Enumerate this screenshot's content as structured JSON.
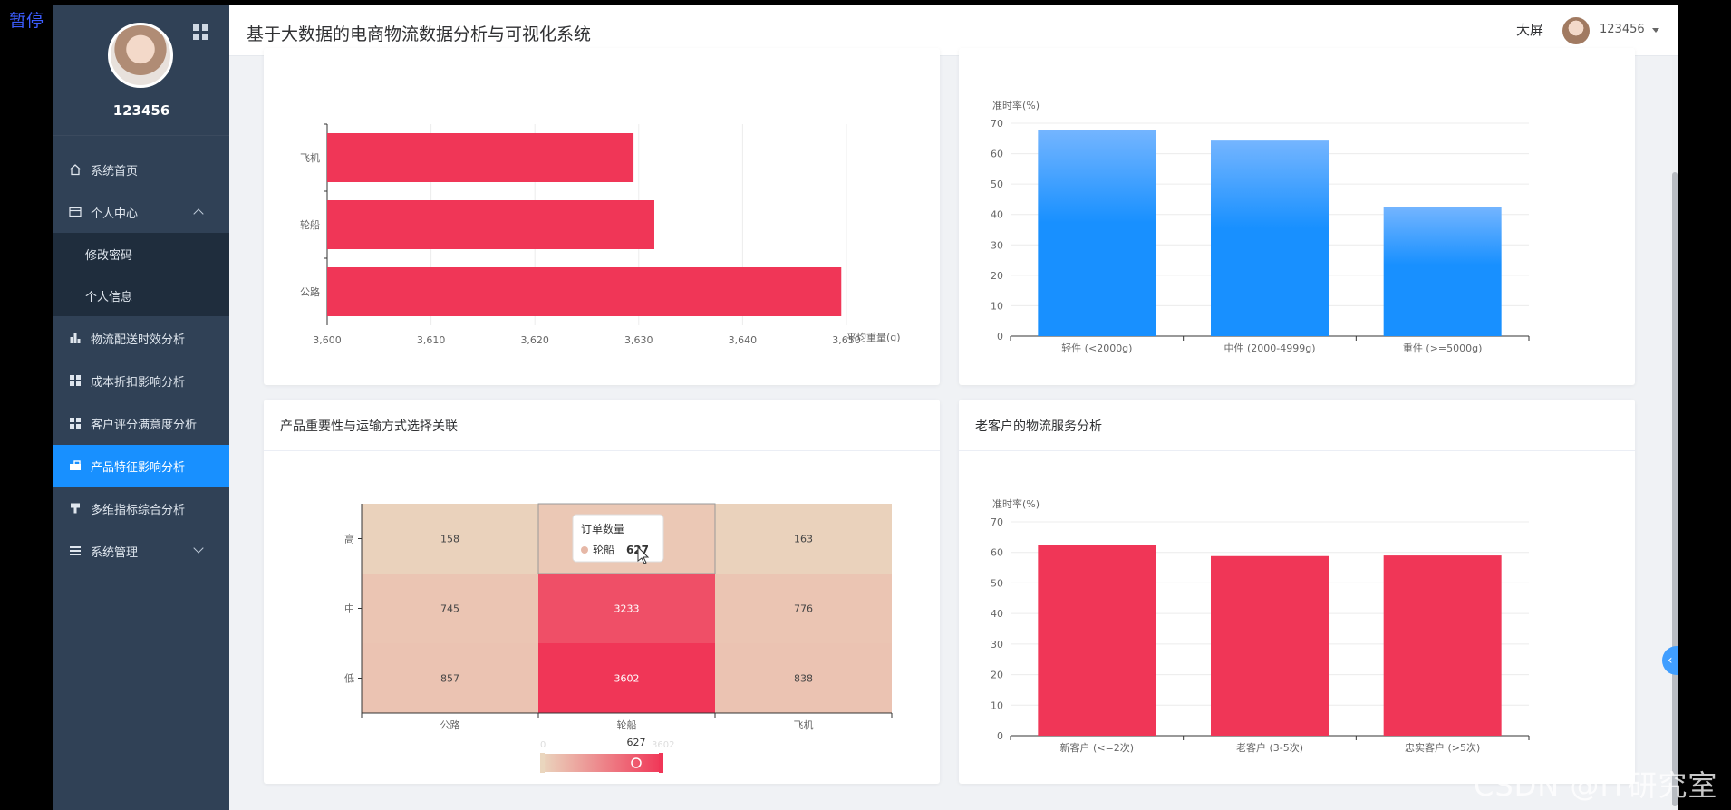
{
  "overlay": {
    "pause_label": "暂停",
    "watermark": "CSDN @IT研究室"
  },
  "sidebar": {
    "username": "123456",
    "items": [
      {
        "label": "系统首页",
        "icon": "home-icon"
      },
      {
        "label": "个人中心",
        "icon": "card-icon"
      },
      {
        "label": "修改密码",
        "icon": ""
      },
      {
        "label": "个人信息",
        "icon": ""
      },
      {
        "label": "物流配送时效分析",
        "icon": "bar-chart-icon"
      },
      {
        "label": "成本折扣影响分析",
        "icon": "grid-icon"
      },
      {
        "label": "客户评分满意度分析",
        "icon": "grid-icon"
      },
      {
        "label": "产品特征影响分析",
        "icon": "briefcase-icon"
      },
      {
        "label": "多维指标综合分析",
        "icon": "tool-icon"
      },
      {
        "label": "系统管理",
        "icon": "list-icon"
      }
    ]
  },
  "header": {
    "title": "基于大数据的电商物流数据分析与可视化系统",
    "bigscreen_label": "大屏",
    "user": "123456"
  },
  "colors": {
    "sidebar_bg": "#304156",
    "active": "#1890ff",
    "bar_red": "#f03657",
    "bar_blue": "#1890ff"
  },
  "cards": {
    "bottom_left_title": "产品重要性与运输方式选择关联",
    "bottom_right_title": "老客户的物流服务分析"
  },
  "chart_data": [
    {
      "type": "bar",
      "orientation": "horizontal",
      "categories": [
        "飞机",
        "轮船",
        "公路"
      ],
      "values": [
        3629.5,
        3631.5,
        3649.5
      ],
      "xlabel": "平均重量(g)",
      "xlim": [
        3600,
        3650
      ],
      "x_ticks": [
        "3,600",
        "3,610",
        "3,620",
        "3,630",
        "3,640",
        "3,650"
      ]
    },
    {
      "type": "bar",
      "categories": [
        "轻件 (<2000g)",
        "中件 (2000-4999g)",
        "重件 (>=5000g)"
      ],
      "values": [
        67.8,
        64.3,
        42.5
      ],
      "ylabel": "准时率(%)",
      "ylim": [
        0,
        70
      ],
      "y_ticks": [
        "0",
        "10",
        "20",
        "30",
        "40",
        "50",
        "60",
        "70"
      ]
    },
    {
      "type": "heatmap",
      "x_categories": [
        "公路",
        "轮船",
        "飞机"
      ],
      "y_categories": [
        "高",
        "中",
        "低"
      ],
      "values": [
        [
          158,
          627,
          163
        ],
        [
          745,
          3233,
          776
        ],
        [
          857,
          3602,
          838
        ]
      ],
      "tooltip": {
        "title": "订单数量",
        "series": "轮船",
        "value": "627"
      },
      "visual_map": {
        "min": "0",
        "max": "3602",
        "current": "627"
      }
    },
    {
      "type": "bar",
      "categories": [
        "新客户 (<=2次)",
        "老客户 (3-5次)",
        "忠实客户 (>5次)"
      ],
      "values": [
        62.5,
        58.8,
        59.0
      ],
      "ylabel": "准时率(%)",
      "ylim": [
        0,
        70
      ],
      "y_ticks": [
        "0",
        "10",
        "20",
        "30",
        "40",
        "50",
        "60",
        "70"
      ]
    }
  ]
}
